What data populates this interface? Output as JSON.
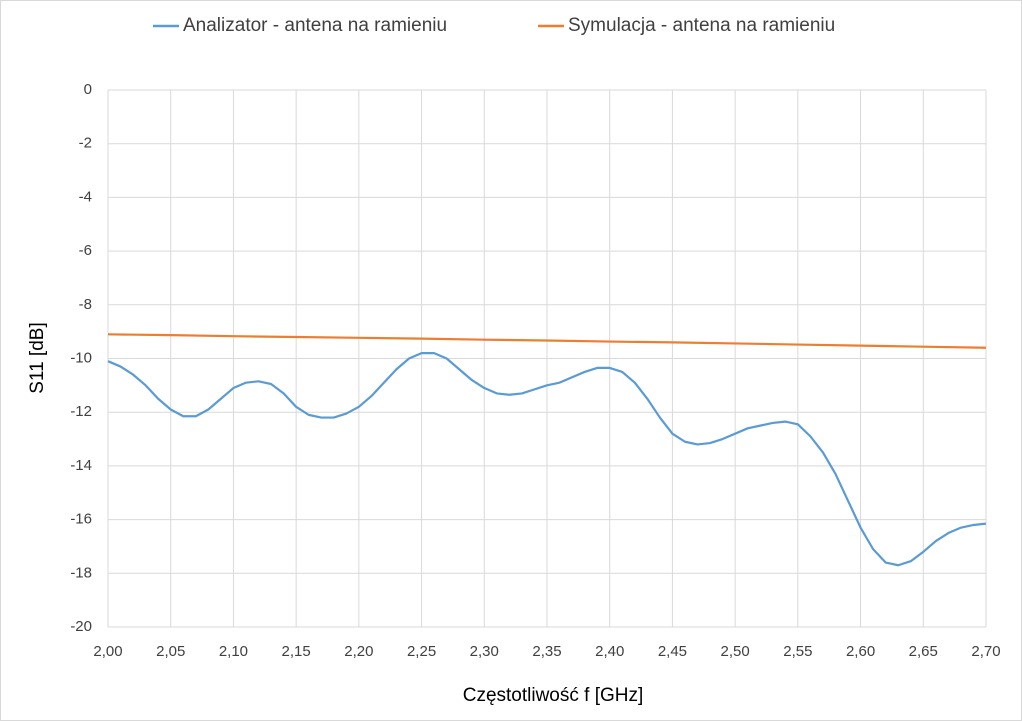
{
  "chart_data": {
    "type": "line",
    "x_label": "Częstotliwość f [GHz]",
    "y_label": "S11 [dB]",
    "xlim": [
      2.0,
      2.7
    ],
    "ylim": [
      -20,
      0
    ],
    "xticks": [
      {
        "value": 2.0,
        "label": "2,00"
      },
      {
        "value": 2.05,
        "label": "2,05"
      },
      {
        "value": 2.1,
        "label": "2,10"
      },
      {
        "value": 2.15,
        "label": "2,15"
      },
      {
        "value": 2.2,
        "label": "2,20"
      },
      {
        "value": 2.25,
        "label": "2,25"
      },
      {
        "value": 2.3,
        "label": "2,30"
      },
      {
        "value": 2.35,
        "label": "2,35"
      },
      {
        "value": 2.4,
        "label": "2,40"
      },
      {
        "value": 2.45,
        "label": "2,45"
      },
      {
        "value": 2.5,
        "label": "2,50"
      },
      {
        "value": 2.55,
        "label": "2,55"
      },
      {
        "value": 2.6,
        "label": "2,60"
      },
      {
        "value": 2.65,
        "label": "2,65"
      },
      {
        "value": 2.7,
        "label": "2,70"
      }
    ],
    "yticks": [
      0,
      -2,
      -4,
      -6,
      -8,
      -10,
      -12,
      -14,
      -16,
      -18,
      -20
    ],
    "grid": true,
    "legend": "top",
    "series": [
      {
        "name": "Analizator - antena na ramieniu",
        "color": "#5b9bd5",
        "x": [
          2.0,
          2.01,
          2.02,
          2.03,
          2.04,
          2.05,
          2.06,
          2.07,
          2.08,
          2.09,
          2.1,
          2.11,
          2.12,
          2.13,
          2.14,
          2.15,
          2.16,
          2.17,
          2.18,
          2.19,
          2.2,
          2.21,
          2.22,
          2.23,
          2.24,
          2.25,
          2.26,
          2.27,
          2.28,
          2.29,
          2.3,
          2.31,
          2.32,
          2.33,
          2.34,
          2.35,
          2.36,
          2.37,
          2.38,
          2.39,
          2.4,
          2.41,
          2.42,
          2.43,
          2.44,
          2.45,
          2.46,
          2.47,
          2.48,
          2.49,
          2.5,
          2.51,
          2.52,
          2.53,
          2.54,
          2.55,
          2.56,
          2.57,
          2.58,
          2.59,
          2.6,
          2.61,
          2.62,
          2.63,
          2.64,
          2.65,
          2.66,
          2.67,
          2.68,
          2.69,
          2.7
        ],
        "values": [
          -10.1,
          -10.3,
          -10.6,
          -11.0,
          -11.5,
          -11.9,
          -12.15,
          -12.15,
          -11.9,
          -11.5,
          -11.1,
          -10.9,
          -10.85,
          -10.95,
          -11.3,
          -11.8,
          -12.1,
          -12.2,
          -12.2,
          -12.05,
          -11.8,
          -11.4,
          -10.9,
          -10.4,
          -10.0,
          -9.8,
          -9.8,
          -10.0,
          -10.4,
          -10.8,
          -11.1,
          -11.3,
          -11.35,
          -11.3,
          -11.15,
          -11.0,
          -10.9,
          -10.7,
          -10.5,
          -10.35,
          -10.35,
          -10.5,
          -10.9,
          -11.5,
          -12.2,
          -12.8,
          -13.1,
          -13.2,
          -13.15,
          -13.0,
          -12.8,
          -12.6,
          -12.5,
          -12.4,
          -12.35,
          -12.45,
          -12.9,
          -13.5,
          -14.3,
          -15.3,
          -16.3,
          -17.1,
          -17.6,
          -17.7,
          -17.55,
          -17.2,
          -16.8,
          -16.5,
          -16.3,
          -16.2,
          -16.15
        ]
      },
      {
        "name": "Symulacja - antena na ramieniu",
        "color": "#ed7d31",
        "x": [
          2.0,
          2.05,
          2.1,
          2.15,
          2.2,
          2.25,
          2.3,
          2.35,
          2.4,
          2.45,
          2.5,
          2.55,
          2.6,
          2.65,
          2.7
        ],
        "values": [
          -9.1,
          -9.13,
          -9.17,
          -9.2,
          -9.23,
          -9.26,
          -9.3,
          -9.33,
          -9.37,
          -9.4,
          -9.44,
          -9.48,
          -9.52,
          -9.56,
          -9.6
        ]
      }
    ]
  }
}
